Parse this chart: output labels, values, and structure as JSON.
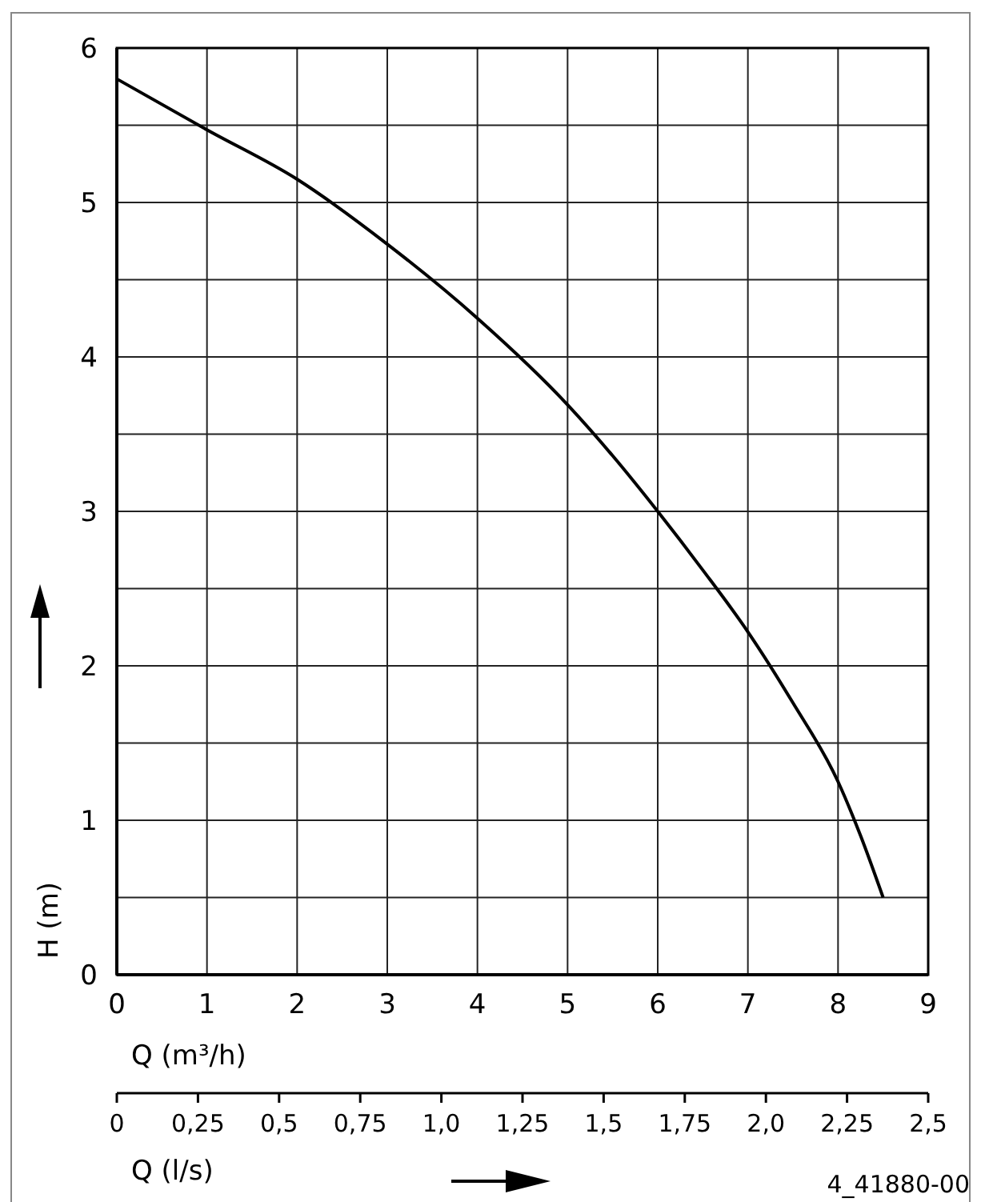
{
  "chart_data": {
    "type": "line",
    "xlabel": "Q (m³/h)",
    "ylabel": "H (m)",
    "x2label": "Q (l/s)",
    "x": [
      0,
      1,
      2,
      3,
      4,
      5,
      5.5,
      6,
      6.5,
      7,
      7.5,
      8,
      8.25,
      8.5
    ],
    "series": [
      {
        "color": "#000000",
        "values": [
          5.8,
          5.47,
          5.15,
          4.73,
          4.25,
          3.69,
          3.36,
          3.0,
          2.62,
          2.22,
          1.76,
          1.25,
          0.9,
          0.5
        ]
      }
    ],
    "xlim": [
      0,
      9
    ],
    "xticks": [
      0,
      1,
      2,
      3,
      4,
      5,
      6,
      7,
      8,
      9
    ],
    "ylim": [
      0,
      6
    ],
    "yticks": [
      0,
      {
        "value": 0.5,
        "label": null
      },
      1,
      {
        "value": 1.5,
        "label": null
      },
      2,
      {
        "value": 2.5,
        "label": null
      },
      3,
      {
        "value": 3.5,
        "label": null
      },
      4,
      {
        "value": 4.5,
        "label": null
      },
      5,
      {
        "value": 5.5,
        "label": null
      },
      6
    ],
    "x2lim": [
      0,
      2.5
    ],
    "x2ticks": [
      0,
      {
        "value": 0.25,
        "label": "0,25"
      },
      {
        "value": 0.5,
        "label": "0,5"
      },
      {
        "value": 0.75,
        "label": "0,75"
      },
      {
        "value": 1,
        "label": "1,0"
      },
      {
        "value": 1.25,
        "label": "1,25"
      },
      {
        "value": 1.5,
        "label": "1,5"
      },
      {
        "value": 1.75,
        "label": "1,75"
      },
      {
        "value": 2,
        "label": "2,0"
      },
      {
        "value": 2.25,
        "label": "2,25"
      },
      {
        "value": 2.5,
        "label": "2,5"
      }
    ],
    "grid": true,
    "marker": "none",
    "line_style": "solid",
    "annotations": [
      "4_41880-00"
    ]
  }
}
